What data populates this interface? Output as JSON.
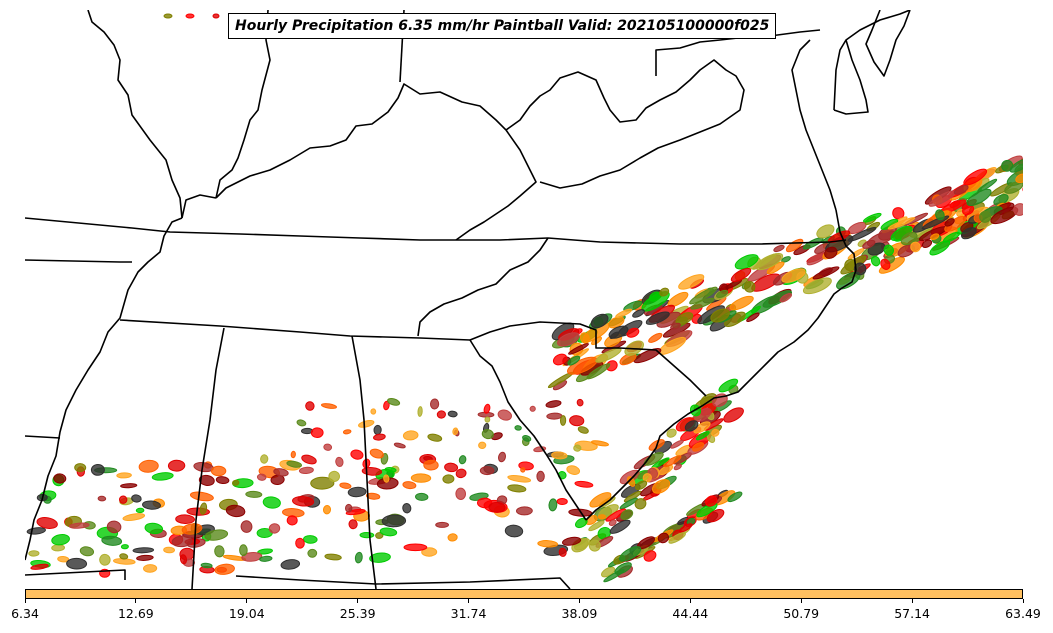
{
  "title": "Hourly Precipitation 6.35 mm/hr Paintball Valid: 202105100000f025",
  "colorbar": {
    "color": "#ffc060",
    "ticks": [
      "6.34",
      "12.69",
      "19.04",
      "25.39",
      "31.74",
      "38.09",
      "44.44",
      "50.79",
      "57.14",
      "63.49"
    ]
  },
  "member_colors": [
    "#ff0000",
    "#e00000",
    "#00cc00",
    "#ff8c00",
    "#808000",
    "#8b0000",
    "#ff6000",
    "#a52a2a",
    "#228b22",
    "#ffa520",
    "#b0b030",
    "#303030",
    "#c04040",
    "#5a8a1a"
  ]
}
